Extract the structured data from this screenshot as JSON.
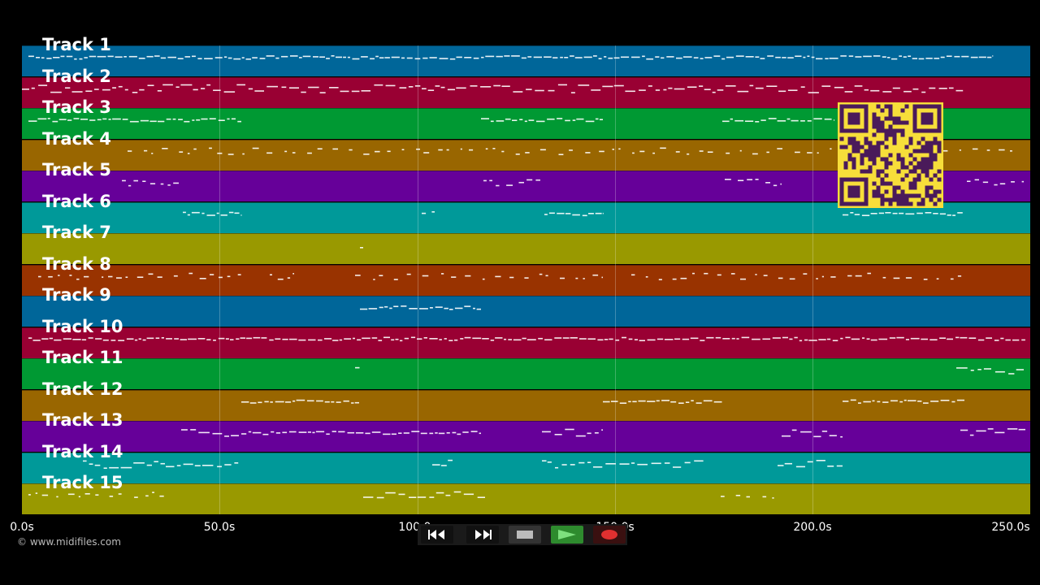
{
  "tracks": [
    {
      "label": "Track 1",
      "color": "#006699"
    },
    {
      "label": "Track 2",
      "color": "#990033"
    },
    {
      "label": "Track 3",
      "color": "#009933"
    },
    {
      "label": "Track 4",
      "color": "#996600"
    },
    {
      "label": "Track 5",
      "color": "#660099"
    },
    {
      "label": "Track 6",
      "color": "#009999"
    },
    {
      "label": "Track 7",
      "color": "#999900"
    },
    {
      "label": "Track 8",
      "color": "#993300"
    },
    {
      "label": "Track 9",
      "color": "#006699"
    },
    {
      "label": "Track 10",
      "color": "#990033"
    },
    {
      "label": "Track 11",
      "color": "#009933"
    },
    {
      "label": "Track 12",
      "color": "#996600"
    },
    {
      "label": "Track 13",
      "color": "#660099"
    },
    {
      "label": "Track 14",
      "color": "#009999"
    },
    {
      "label": "Track 15",
      "color": "#999900"
    }
  ],
  "timeline": {
    "ticks": [
      "0.0s",
      "50.0s",
      "100.0s",
      "150.0s",
      "200.0s",
      "250.0s"
    ]
  },
  "copyright": "© www.midifiles.com",
  "transport": {
    "rewind_icon": "rewind-icon",
    "fast_forward_icon": "fast-forward-icon",
    "stop_icon": "stop-icon",
    "play_icon": "play-icon",
    "record_icon": "record-icon",
    "play_color": "#2e8b2e",
    "record_color": "#e03030"
  },
  "qr_color": "#f7de3a"
}
